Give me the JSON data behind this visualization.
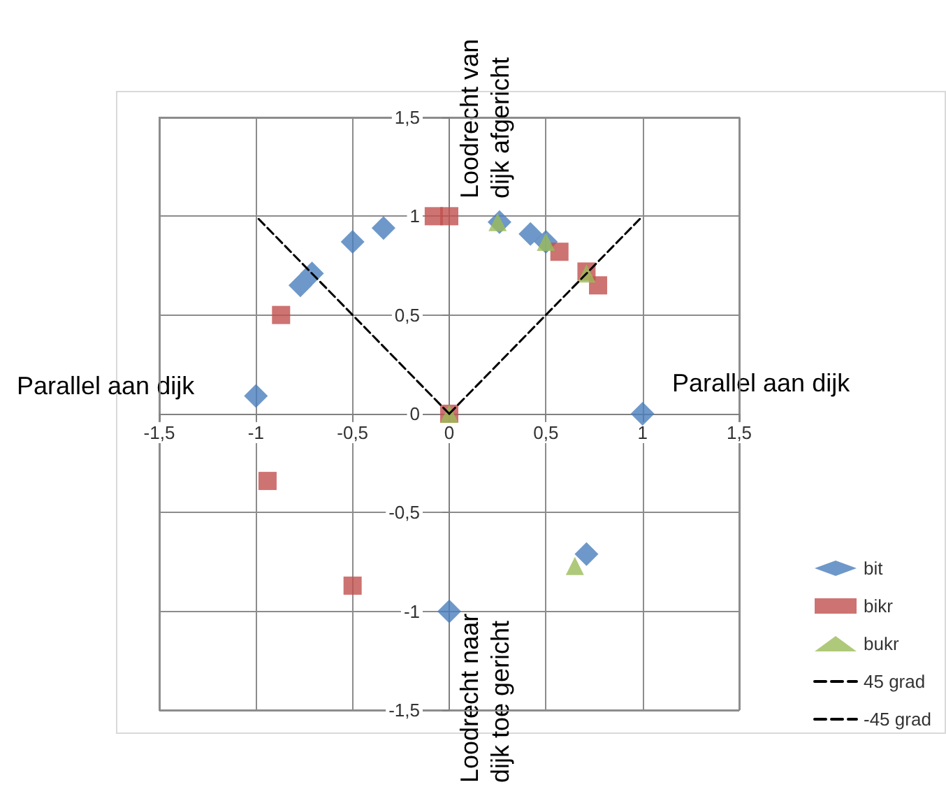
{
  "chart_data": {
    "type": "scatter",
    "annotations": [
      "Parallel aan dijk",
      "Parallel aan dijk",
      "Loodrecht van\ndijk afgericht",
      "Loodrecht naar\ndijk toe gericht"
    ],
    "series": [
      {
        "name": "bit",
        "color": "#4a7ebb",
        "marker": "diamond",
        "x": [
          -1.0,
          -0.77,
          -0.71,
          -0.5,
          -0.34,
          0.26,
          0.42,
          0.5,
          1.0,
          0.71,
          0.0
        ],
        "values": [
          0.09,
          0.65,
          0.71,
          0.87,
          0.94,
          0.97,
          0.91,
          0.87,
          0.0,
          -0.71,
          -1.0
        ]
      },
      {
        "name": "bikr",
        "color": "#c0504d",
        "marker": "square",
        "x": [
          -0.87,
          -0.08,
          0.0,
          0.57,
          0.71,
          0.77,
          0.0,
          -0.94,
          -0.5
        ],
        "values": [
          0.5,
          1.0,
          1.0,
          0.82,
          0.72,
          0.65,
          0.0,
          -0.34,
          -0.87
        ]
      },
      {
        "name": "bukr",
        "color": "#9bbb59",
        "marker": "triangle",
        "x": [
          0.25,
          0.5,
          0.71,
          0.0,
          0.65
        ],
        "values": [
          0.97,
          0.87,
          0.71,
          0.0,
          -0.77
        ]
      },
      {
        "name": "45 grad",
        "type": "line",
        "color": "#000000",
        "marker": "none",
        "line_style": "dashed",
        "x": [
          0,
          1
        ],
        "values": [
          0,
          1
        ]
      },
      {
        "name": "-45 grad",
        "type": "line",
        "color": "#000000",
        "marker": "none",
        "line_style": "dashed",
        "x": [
          0,
          -1
        ],
        "values": [
          0,
          1
        ]
      }
    ],
    "xlim": [
      -1.5,
      1.5
    ],
    "xticks": [
      {
        "value": -1.5,
        "label": "-1,5"
      },
      -1,
      {
        "value": -0.5,
        "label": "-0,5"
      },
      0,
      {
        "value": 0.5,
        "label": "0,5"
      },
      1,
      {
        "value": 1.5,
        "label": "1,5"
      }
    ],
    "ylim": [
      -1.5,
      1.5
    ],
    "yticks": [
      {
        "value": -1.5,
        "label": "-1,5"
      },
      -1,
      {
        "value": -0.5,
        "label": "-0,5"
      },
      0,
      {
        "value": 0.5,
        "label": "0,5"
      },
      1,
      {
        "value": 1.5,
        "label": "1,5"
      }
    ],
    "grid": true,
    "legend": "right"
  }
}
